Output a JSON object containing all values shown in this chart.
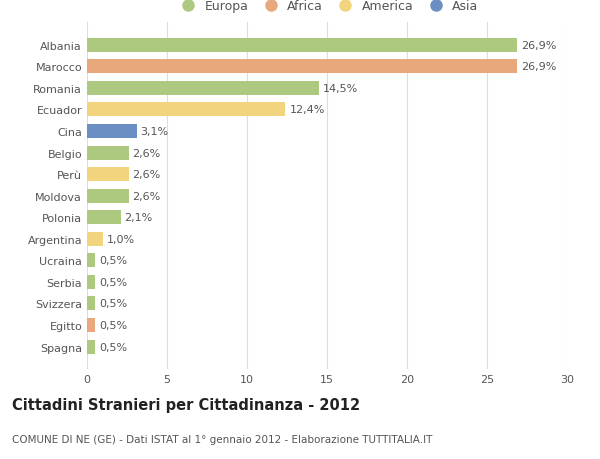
{
  "categories": [
    "Albania",
    "Marocco",
    "Romania",
    "Ecuador",
    "Cina",
    "Belgio",
    "Perù",
    "Moldova",
    "Polonia",
    "Argentina",
    "Ucraina",
    "Serbia",
    "Svizzera",
    "Egitto",
    "Spagna"
  ],
  "values": [
    26.9,
    26.9,
    14.5,
    12.4,
    3.1,
    2.6,
    2.6,
    2.6,
    2.1,
    1.0,
    0.5,
    0.5,
    0.5,
    0.5,
    0.5
  ],
  "labels": [
    "26,9%",
    "26,9%",
    "14,5%",
    "12,4%",
    "3,1%",
    "2,6%",
    "2,6%",
    "2,6%",
    "2,1%",
    "1,0%",
    "0,5%",
    "0,5%",
    "0,5%",
    "0,5%",
    "0,5%"
  ],
  "continents": [
    "Europa",
    "Africa",
    "Europa",
    "America",
    "Asia",
    "Europa",
    "America",
    "Europa",
    "Europa",
    "America",
    "Europa",
    "Europa",
    "Europa",
    "Africa",
    "Europa"
  ],
  "colors": {
    "Europa": "#adc97f",
    "Africa": "#e8a87c",
    "America": "#f2d47e",
    "Asia": "#6b8fc2"
  },
  "xlim": [
    0,
    30
  ],
  "xticks": [
    0,
    5,
    10,
    15,
    20,
    25,
    30
  ],
  "title": "Cittadini Stranieri per Cittadinanza - 2012",
  "subtitle": "COMUNE DI NE (GE) - Dati ISTAT al 1° gennaio 2012 - Elaborazione TUTTITALIA.IT",
  "background_color": "#ffffff",
  "bar_height": 0.65,
  "grid_color": "#dddddd",
  "text_color": "#555555",
  "label_fontsize": 8,
  "tick_fontsize": 8,
  "title_fontsize": 10.5,
  "subtitle_fontsize": 7.5,
  "legend_entries": [
    "Europa",
    "Africa",
    "America",
    "Asia"
  ]
}
